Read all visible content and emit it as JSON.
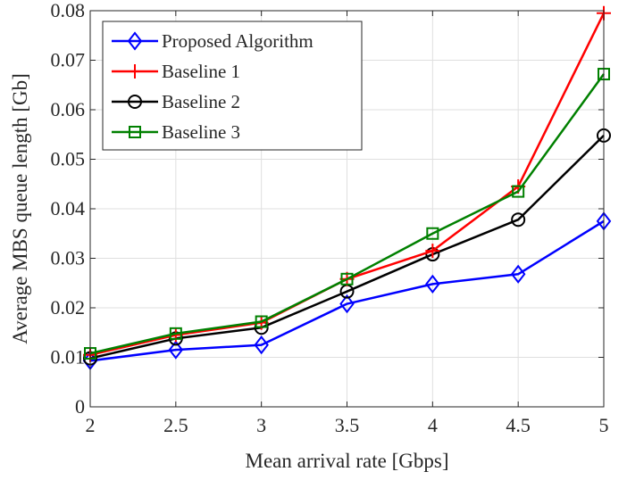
{
  "chart_data": {
    "type": "line",
    "title": "",
    "xlabel": "Mean arrival rate [Gbps]",
    "ylabel": "Average MBS queue length [Gb]",
    "xlim": [
      2,
      5
    ],
    "ylim": [
      0,
      0.08
    ],
    "x": [
      2,
      2.5,
      3,
      3.5,
      4,
      4.5,
      5
    ],
    "x_tick_labels": [
      "2",
      "2.5",
      "3",
      "3.5",
      "4",
      "4.5",
      "5"
    ],
    "y_ticks": [
      0,
      0.01,
      0.02,
      0.03,
      0.04,
      0.05,
      0.06,
      0.07,
      0.08
    ],
    "y_tick_labels": [
      "0",
      "0.01",
      "0.02",
      "0.03",
      "0.04",
      "0.05",
      "0.06",
      "0.07",
      "0.08"
    ],
    "grid": true,
    "legend_position": "top-left",
    "series": [
      {
        "name": "Proposed Algorithm",
        "color": "#0000ff",
        "marker": "diamond",
        "values": [
          0.0093,
          0.0115,
          0.0125,
          0.0208,
          0.0248,
          0.0268,
          0.0375
        ]
      },
      {
        "name": "Baseline 1",
        "color": "#ff0000",
        "marker": "plus",
        "values": [
          0.0105,
          0.0145,
          0.017,
          0.0258,
          0.0315,
          0.0445,
          0.0795
        ]
      },
      {
        "name": "Baseline 2",
        "color": "#000000",
        "marker": "circle",
        "values": [
          0.0098,
          0.0138,
          0.016,
          0.0233,
          0.0308,
          0.0378,
          0.0548
        ]
      },
      {
        "name": "Baseline 3",
        "color": "#008000",
        "marker": "square",
        "values": [
          0.0108,
          0.0148,
          0.0172,
          0.0258,
          0.035,
          0.0435,
          0.0672
        ]
      }
    ]
  }
}
